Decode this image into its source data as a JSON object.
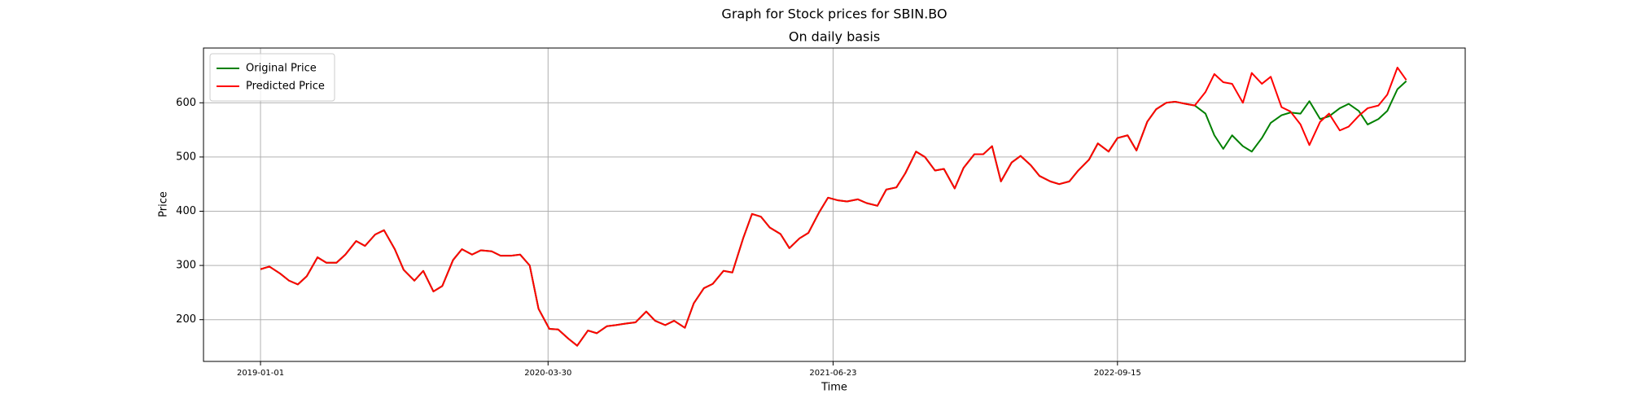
{
  "chart_data": {
    "type": "line",
    "title": "Graph for Stock prices for SBIN.BO",
    "subtitle": "On daily basis",
    "x_label": "Time",
    "y_label": "Price",
    "x": [
      "2019-01-01",
      "2019-01-15",
      "2019-02-01",
      "2019-02-15",
      "2019-03-01",
      "2019-03-15",
      "2019-04-01",
      "2019-04-15",
      "2019-05-01",
      "2019-05-15",
      "2019-06-01",
      "2019-06-15",
      "2019-07-01",
      "2019-07-15",
      "2019-08-01",
      "2019-08-15",
      "2019-09-01",
      "2019-09-15",
      "2019-10-01",
      "2019-10-15",
      "2019-11-01",
      "2019-11-15",
      "2019-12-01",
      "2019-12-15",
      "2020-01-01",
      "2020-01-15",
      "2020-02-01",
      "2020-02-15",
      "2020-03-01",
      "2020-03-15",
      "2020-04-01",
      "2020-04-15",
      "2020-05-01",
      "2020-05-15",
      "2020-06-01",
      "2020-06-15",
      "2020-07-01",
      "2020-07-15",
      "2020-08-01",
      "2020-08-15",
      "2020-09-01",
      "2020-09-15",
      "2020-10-01",
      "2020-10-15",
      "2020-11-01",
      "2020-11-15",
      "2020-12-01",
      "2020-12-15",
      "2021-01-01",
      "2021-01-15",
      "2021-02-01",
      "2021-02-15",
      "2021-03-01",
      "2021-03-15",
      "2021-04-01",
      "2021-04-15",
      "2021-05-01",
      "2021-05-15",
      "2021-06-01",
      "2021-06-15",
      "2021-07-01",
      "2021-07-15",
      "2021-08-01",
      "2021-08-15",
      "2021-09-01",
      "2021-09-15",
      "2021-10-01",
      "2021-10-15",
      "2021-11-01",
      "2021-11-15",
      "2021-12-01",
      "2021-12-15",
      "2022-01-01",
      "2022-01-15",
      "2022-02-01",
      "2022-02-15",
      "2022-03-01",
      "2022-03-15",
      "2022-04-01",
      "2022-04-15",
      "2022-05-01",
      "2022-05-15",
      "2022-06-01",
      "2022-06-15",
      "2022-07-01",
      "2022-07-15",
      "2022-08-01",
      "2022-08-15",
      "2022-09-01",
      "2022-09-15",
      "2022-10-01",
      "2022-10-15",
      "2022-11-01",
      "2022-11-15",
      "2022-12-01",
      "2022-12-15",
      "2023-01-01",
      "2023-01-15",
      "2023-02-01",
      "2023-02-15",
      "2023-03-01",
      "2023-03-15",
      "2023-04-01",
      "2023-04-15",
      "2023-05-01",
      "2023-05-15",
      "2023-06-01",
      "2023-06-15",
      "2023-07-01",
      "2023-07-15",
      "2023-08-01",
      "2023-08-15",
      "2023-09-01",
      "2023-09-15",
      "2023-10-01",
      "2023-10-15",
      "2023-11-01",
      "2023-11-15",
      "2023-12-01",
      "2023-12-15"
    ],
    "series": [
      {
        "name": "Original Price",
        "color": "#008000",
        "values": [
          293,
          298,
          285,
          272,
          265,
          280,
          315,
          305,
          305,
          320,
          345,
          336,
          357,
          365,
          330,
          292,
          272,
          290,
          252,
          262,
          310,
          330,
          320,
          328,
          326,
          318,
          318,
          320,
          300,
          220,
          183,
          182,
          165,
          152,
          180,
          175,
          188,
          190,
          193,
          195,
          215,
          198,
          190,
          198,
          185,
          230,
          258,
          266,
          290,
          287,
          350,
          395,
          390,
          370,
          358,
          332,
          350,
          360,
          398,
          425,
          420,
          418,
          422,
          415,
          410,
          440,
          444,
          470,
          510,
          500,
          475,
          478,
          442,
          480,
          505,
          505,
          520,
          455,
          490,
          502,
          485,
          465,
          455,
          450,
          455,
          475,
          495,
          525,
          510,
          535,
          540,
          512,
          565,
          588,
          600,
          602,
          598,
          595,
          580,
          540,
          515,
          540,
          520,
          510,
          535,
          563,
          577,
          582,
          580,
          603,
          570,
          575,
          590,
          598,
          585,
          560,
          570,
          585,
          625,
          640
        ]
      },
      {
        "name": "Predicted Price",
        "color": "#ff0000",
        "values": [
          293,
          298,
          285,
          272,
          265,
          280,
          315,
          305,
          305,
          320,
          345,
          336,
          357,
          365,
          330,
          292,
          272,
          290,
          252,
          262,
          310,
          330,
          320,
          328,
          326,
          318,
          318,
          320,
          300,
          220,
          183,
          182,
          165,
          152,
          180,
          175,
          188,
          190,
          193,
          195,
          215,
          198,
          190,
          198,
          185,
          230,
          258,
          266,
          290,
          287,
          350,
          395,
          390,
          370,
          358,
          332,
          350,
          360,
          398,
          425,
          420,
          418,
          422,
          415,
          410,
          440,
          444,
          470,
          510,
          500,
          475,
          478,
          442,
          480,
          505,
          505,
          520,
          455,
          490,
          502,
          485,
          465,
          455,
          450,
          455,
          475,
          495,
          525,
          510,
          535,
          540,
          512,
          565,
          588,
          600,
          602,
          598,
          595,
          620,
          653,
          638,
          635,
          600,
          655,
          635,
          648,
          592,
          584,
          560,
          522,
          565,
          580,
          549,
          556,
          576,
          590,
          595,
          615,
          665,
          642
        ]
      }
    ],
    "xlim": [
      "2018-10-03",
      "2024-03-17"
    ],
    "xticks": [
      "2019-01-01",
      "2020-03-30",
      "2021-06-23",
      "2022-09-15"
    ],
    "ylim": [
      123,
      701
    ],
    "yticks": [
      200,
      300,
      400,
      500,
      600
    ],
    "grid": true,
    "legend": "upper-left"
  }
}
